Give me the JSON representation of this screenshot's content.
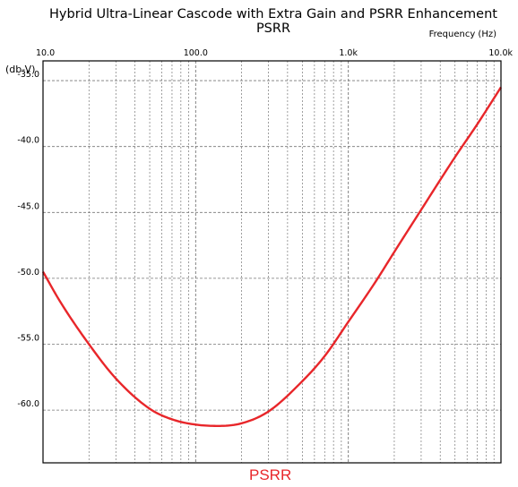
{
  "chart_data": {
    "type": "line",
    "title": "Hybrid Ultra-Linear Cascode with Extra Gain and PSRR Enhancement PSRR",
    "xlabel": "Frequency  (Hz)",
    "ylabel": "(db-V)",
    "xscale": "log",
    "xlim": [
      10,
      10000
    ],
    "ylim": [
      -64,
      -33.5
    ],
    "x_tick_labels": [
      {
        "value": 10,
        "label": "10.0"
      },
      {
        "value": 100,
        "label": "100.0"
      },
      {
        "value": 1000,
        "label": "1.0k"
      },
      {
        "value": 10000,
        "label": "10.0k"
      }
    ],
    "y_tick_labels": [
      {
        "value": -35,
        "label": "-35.0"
      },
      {
        "value": -40,
        "label": "-40.0"
      },
      {
        "value": -45,
        "label": "-45.0"
      },
      {
        "value": -50,
        "label": "-50.0"
      },
      {
        "value": -55,
        "label": "-55.0"
      },
      {
        "value": -60,
        "label": "-60.0"
      }
    ],
    "grid": true,
    "legend": "bottom-center",
    "series": [
      {
        "name": "PSRR",
        "color": "#e8262a",
        "x": [
          10,
          13,
          20,
          30,
          50,
          70,
          100,
          140,
          200,
          300,
          500,
          700,
          1000,
          1500,
          2000,
          3000,
          5000,
          7000,
          10000
        ],
        "y": [
          -49.5,
          -51.8,
          -55.0,
          -57.6,
          -59.9,
          -60.7,
          -61.1,
          -61.2,
          -61.0,
          -60.1,
          -57.8,
          -55.9,
          -53.3,
          -50.3,
          -48.0,
          -44.8,
          -40.8,
          -38.3,
          -35.5
        ]
      }
    ]
  }
}
